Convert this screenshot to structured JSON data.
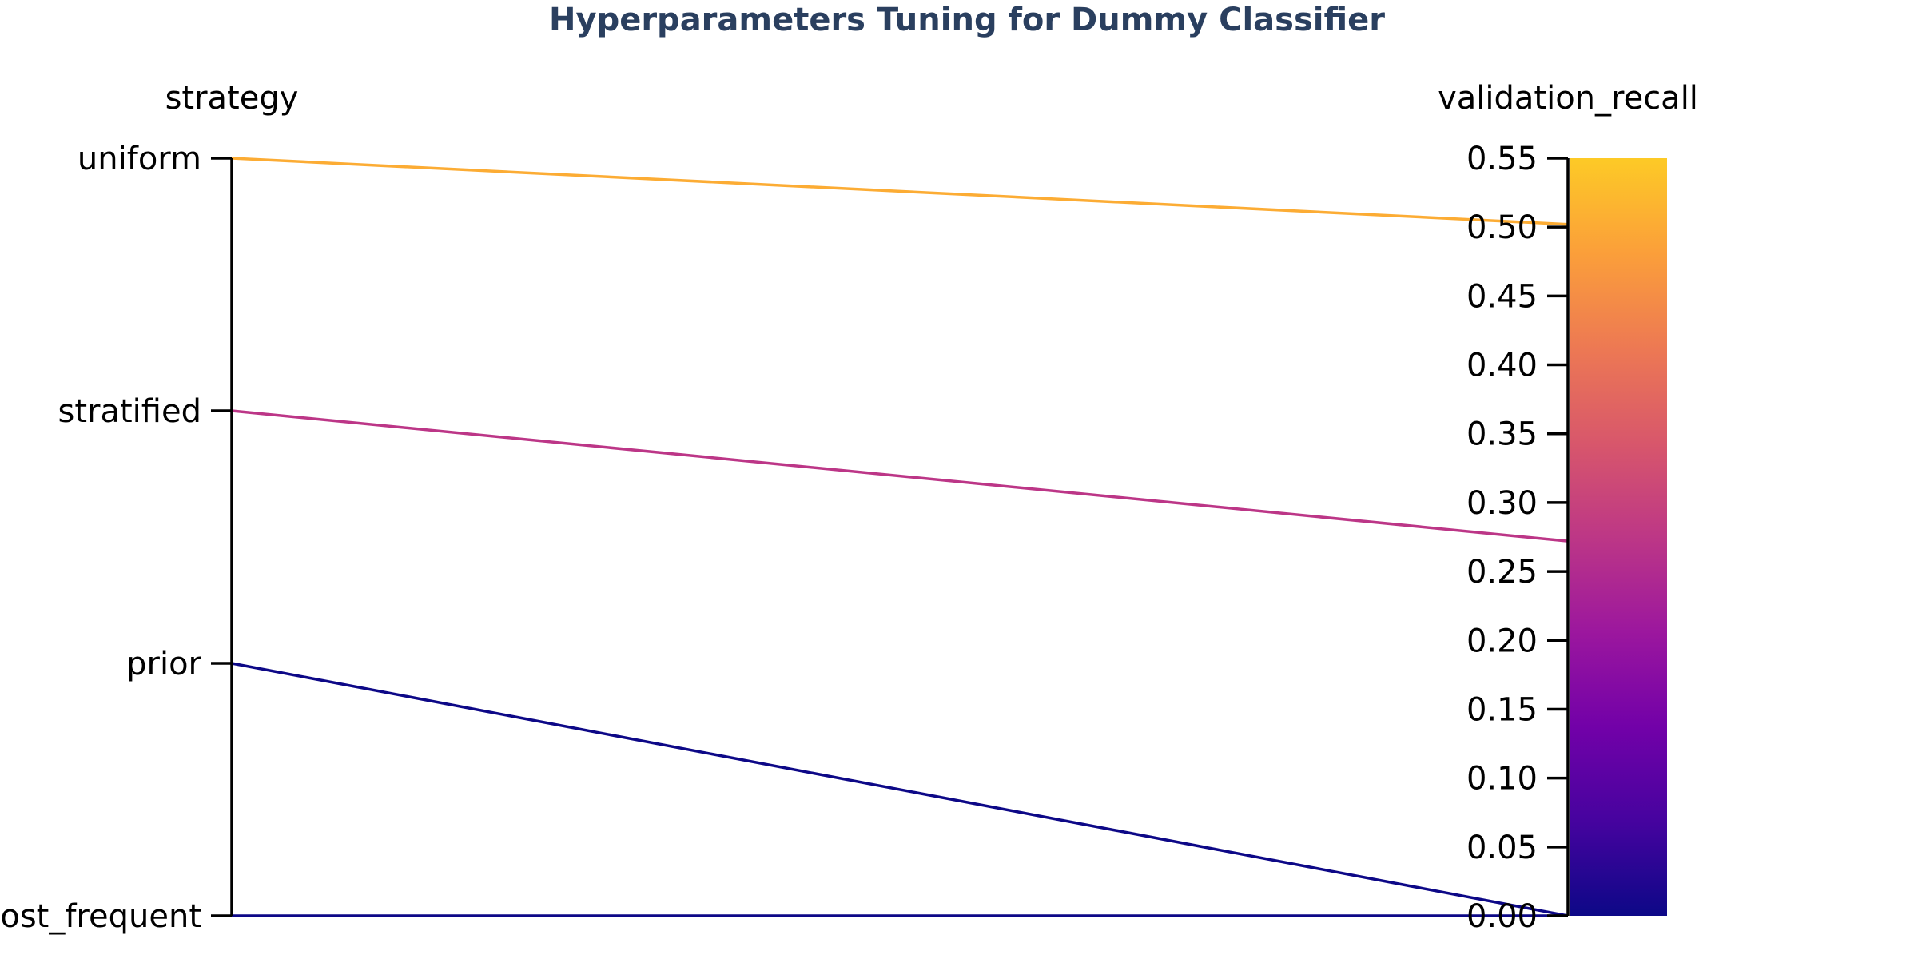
{
  "chart_data": {
    "type": "parallel_coordinates",
    "title": "Hyperparameters Tuning for Dummy Classifier",
    "dimensions": [
      {
        "label": "strategy",
        "kind": "categorical",
        "categories": [
          "uniform",
          "stratified",
          "prior",
          "most_frequent"
        ]
      },
      {
        "label": "validation_recall",
        "kind": "numeric",
        "range": [
          0,
          0.55
        ],
        "ticks": [
          "0.55",
          "0.50",
          "0.45",
          "0.40",
          "0.35",
          "0.30",
          "0.25",
          "0.20",
          "0.15",
          "0.10",
          "0.05",
          "0.00"
        ]
      }
    ],
    "rows": [
      {
        "strategy": "uniform",
        "validation_recall": 0.502
      },
      {
        "strategy": "stratified",
        "validation_recall": 0.272
      },
      {
        "strategy": "prior",
        "validation_recall": 0.0
      },
      {
        "strategy": "most_frequent",
        "validation_recall": 0.0
      }
    ],
    "colorscale": {
      "name": "plasma",
      "range": [
        0,
        0.55
      ],
      "stops": [
        "#0d0887",
        "#46039f",
        "#7201a8",
        "#9c179e",
        "#bd3786",
        "#d8576b",
        "#ed7953",
        "#fb9f3a",
        "#fdca26"
      ]
    },
    "grid": false,
    "legend": "none"
  }
}
